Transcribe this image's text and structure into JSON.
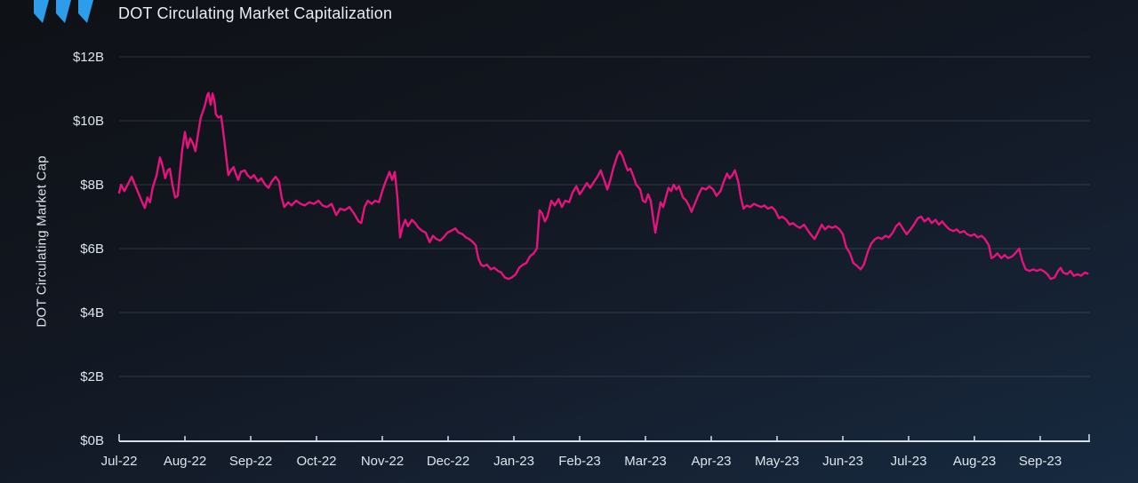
{
  "page": {
    "title": "DOT Circulating Market Capitalization"
  },
  "header": {
    "logo_color": "#2D9CEB"
  },
  "theme": {
    "background_top": "#0e1116",
    "background_bottom": "#172a40",
    "text_primary": "#E9EEF3",
    "text_secondary": "#DCE5EC",
    "gridline_color": "rgba(168,182,200,0.20)",
    "axis_color": "#D5E0EA",
    "line_color": "#E6137E"
  },
  "chart_data": {
    "type": "line",
    "title": "DOT Circulating Market Capitalization",
    "xlabel": "",
    "ylabel": "DOT Circulating Market Cap",
    "unit": "USD billions",
    "ylim": [
      0,
      12
    ],
    "ytick_values": [
      0,
      2,
      4,
      6,
      8,
      10,
      12
    ],
    "ytick_labels": [
      "$0B",
      "$2B",
      "$4B",
      "$6B",
      "$8B",
      "$10B",
      "$12B"
    ],
    "x_tick_labels": [
      "Jul-22",
      "Aug-22",
      "Sep-22",
      "Oct-22",
      "Nov-22",
      "Dec-22",
      "Jan-23",
      "Feb-23",
      "Mar-23",
      "Apr-23",
      "May-23",
      "Jun-23",
      "Jul-23",
      "Aug-23",
      "Sep-23"
    ],
    "x_unit": "months since Jul-2022",
    "x_range": [
      0,
      14.75
    ],
    "grid": "horizontal",
    "legend": "none",
    "series": [
      {
        "name": "DOT Circulating Market Cap",
        "color": "#E6137E",
        "points": [
          [
            0,
            7.75
          ],
          [
            0.03,
            8.0
          ],
          [
            0.08,
            7.8
          ],
          [
            0.19,
            8.25
          ],
          [
            0.24,
            8.0
          ],
          [
            0.3,
            7.7
          ],
          [
            0.35,
            7.45
          ],
          [
            0.39,
            7.27
          ],
          [
            0.43,
            7.6
          ],
          [
            0.47,
            7.45
          ],
          [
            0.51,
            7.9
          ],
          [
            0.57,
            8.3
          ],
          [
            0.62,
            8.85
          ],
          [
            0.66,
            8.6
          ],
          [
            0.7,
            8.2
          ],
          [
            0.74,
            8.45
          ],
          [
            0.77,
            8.5
          ],
          [
            0.81,
            8.0
          ],
          [
            0.85,
            7.6
          ],
          [
            0.89,
            7.65
          ],
          [
            0.92,
            8.3
          ],
          [
            0.96,
            9.1
          ],
          [
            1.0,
            9.65
          ],
          [
            1.04,
            9.15
          ],
          [
            1.08,
            9.45
          ],
          [
            1.12,
            9.3
          ],
          [
            1.16,
            9.05
          ],
          [
            1.2,
            9.6
          ],
          [
            1.24,
            10.1
          ],
          [
            1.3,
            10.45
          ],
          [
            1.34,
            10.8
          ],
          [
            1.36,
            10.87
          ],
          [
            1.39,
            10.5
          ],
          [
            1.42,
            10.85
          ],
          [
            1.45,
            10.6
          ],
          [
            1.47,
            10.2
          ],
          [
            1.51,
            10.1
          ],
          [
            1.55,
            10.15
          ],
          [
            1.58,
            9.7
          ],
          [
            1.62,
            9.0
          ],
          [
            1.66,
            8.3
          ],
          [
            1.7,
            8.45
          ],
          [
            1.74,
            8.55
          ],
          [
            1.78,
            8.3
          ],
          [
            1.81,
            8.15
          ],
          [
            1.85,
            8.4
          ],
          [
            1.91,
            8.45
          ],
          [
            1.95,
            8.3
          ],
          [
            2.0,
            8.2
          ],
          [
            2.05,
            8.3
          ],
          [
            2.11,
            8.1
          ],
          [
            2.16,
            8.2
          ],
          [
            2.22,
            8.0
          ],
          [
            2.27,
            7.9
          ],
          [
            2.32,
            8.1
          ],
          [
            2.38,
            8.25
          ],
          [
            2.43,
            8.1
          ],
          [
            2.47,
            7.6
          ],
          [
            2.51,
            7.3
          ],
          [
            2.57,
            7.45
          ],
          [
            2.62,
            7.35
          ],
          [
            2.69,
            7.5
          ],
          [
            2.76,
            7.4
          ],
          [
            2.82,
            7.35
          ],
          [
            2.89,
            7.45
          ],
          [
            2.96,
            7.4
          ],
          [
            3.03,
            7.5
          ],
          [
            3.09,
            7.35
          ],
          [
            3.16,
            7.3
          ],
          [
            3.23,
            7.4
          ],
          [
            3.3,
            7.05
          ],
          [
            3.36,
            7.25
          ],
          [
            3.43,
            7.2
          ],
          [
            3.5,
            7.3
          ],
          [
            3.57,
            7.1
          ],
          [
            3.64,
            6.85
          ],
          [
            3.68,
            6.8
          ],
          [
            3.73,
            7.3
          ],
          [
            3.78,
            7.5
          ],
          [
            3.84,
            7.4
          ],
          [
            3.89,
            7.5
          ],
          [
            3.95,
            7.45
          ],
          [
            4.0,
            7.8
          ],
          [
            4.05,
            8.1
          ],
          [
            4.11,
            8.4
          ],
          [
            4.15,
            8.15
          ],
          [
            4.19,
            8.4
          ],
          [
            4.23,
            7.6
          ],
          [
            4.27,
            6.35
          ],
          [
            4.31,
            6.7
          ],
          [
            4.35,
            6.9
          ],
          [
            4.39,
            6.7
          ],
          [
            4.45,
            6.9
          ],
          [
            4.5,
            6.8
          ],
          [
            4.55,
            6.65
          ],
          [
            4.61,
            6.55
          ],
          [
            4.66,
            6.5
          ],
          [
            4.72,
            6.2
          ],
          [
            4.77,
            6.4
          ],
          [
            4.82,
            6.3
          ],
          [
            4.88,
            6.25
          ],
          [
            4.93,
            6.35
          ],
          [
            4.99,
            6.5
          ],
          [
            5.04,
            6.55
          ],
          [
            5.11,
            6.63
          ],
          [
            5.16,
            6.5
          ],
          [
            5.22,
            6.45
          ],
          [
            5.27,
            6.35
          ],
          [
            5.32,
            6.3
          ],
          [
            5.38,
            6.2
          ],
          [
            5.42,
            6.1
          ],
          [
            5.46,
            5.7
          ],
          [
            5.5,
            5.5
          ],
          [
            5.54,
            5.45
          ],
          [
            5.59,
            5.5
          ],
          [
            5.65,
            5.35
          ],
          [
            5.7,
            5.4
          ],
          [
            5.76,
            5.3
          ],
          [
            5.81,
            5.25
          ],
          [
            5.86,
            5.1
          ],
          [
            5.92,
            5.05
          ],
          [
            5.97,
            5.1
          ],
          [
            6.03,
            5.2
          ],
          [
            6.08,
            5.4
          ],
          [
            6.14,
            5.5
          ],
          [
            6.19,
            5.55
          ],
          [
            6.24,
            5.75
          ],
          [
            6.3,
            5.85
          ],
          [
            6.35,
            6.0
          ],
          [
            6.39,
            7.2
          ],
          [
            6.43,
            7.1
          ],
          [
            6.47,
            6.85
          ],
          [
            6.51,
            7.0
          ],
          [
            6.57,
            7.5
          ],
          [
            6.62,
            7.35
          ],
          [
            6.68,
            7.55
          ],
          [
            6.73,
            7.3
          ],
          [
            6.78,
            7.5
          ],
          [
            6.84,
            7.45
          ],
          [
            6.89,
            7.75
          ],
          [
            6.95,
            7.95
          ],
          [
            7.0,
            7.7
          ],
          [
            7.05,
            7.85
          ],
          [
            7.11,
            8.05
          ],
          [
            7.16,
            7.9
          ],
          [
            7.22,
            8.1
          ],
          [
            7.27,
            8.25
          ],
          [
            7.32,
            8.45
          ],
          [
            7.38,
            8.1
          ],
          [
            7.42,
            7.85
          ],
          [
            7.46,
            8.1
          ],
          [
            7.51,
            8.5
          ],
          [
            7.57,
            8.9
          ],
          [
            7.61,
            9.05
          ],
          [
            7.65,
            8.9
          ],
          [
            7.69,
            8.65
          ],
          [
            7.73,
            8.45
          ],
          [
            7.77,
            8.5
          ],
          [
            7.81,
            8.3
          ],
          [
            7.86,
            8.0
          ],
          [
            7.92,
            7.85
          ],
          [
            7.96,
            7.5
          ],
          [
            8.0,
            7.45
          ],
          [
            8.04,
            7.7
          ],
          [
            8.08,
            7.5
          ],
          [
            8.12,
            6.9
          ],
          [
            8.15,
            6.5
          ],
          [
            8.19,
            7.0
          ],
          [
            8.23,
            7.45
          ],
          [
            8.27,
            7.3
          ],
          [
            8.31,
            7.6
          ],
          [
            8.35,
            7.9
          ],
          [
            8.39,
            7.8
          ],
          [
            8.43,
            8.0
          ],
          [
            8.47,
            7.85
          ],
          [
            8.51,
            7.95
          ],
          [
            8.57,
            7.6
          ],
          [
            8.62,
            7.5
          ],
          [
            8.66,
            7.35
          ],
          [
            8.7,
            7.15
          ],
          [
            8.76,
            7.45
          ],
          [
            8.81,
            7.7
          ],
          [
            8.86,
            7.9
          ],
          [
            8.92,
            7.85
          ],
          [
            8.97,
            7.95
          ],
          [
            9.03,
            7.85
          ],
          [
            9.08,
            7.65
          ],
          [
            9.14,
            7.8
          ],
          [
            9.19,
            8.1
          ],
          [
            9.24,
            8.35
          ],
          [
            9.28,
            8.2
          ],
          [
            9.32,
            8.3
          ],
          [
            9.36,
            8.45
          ],
          [
            9.41,
            8.1
          ],
          [
            9.45,
            7.6
          ],
          [
            9.49,
            7.25
          ],
          [
            9.54,
            7.35
          ],
          [
            9.59,
            7.3
          ],
          [
            9.65,
            7.4
          ],
          [
            9.7,
            7.35
          ],
          [
            9.76,
            7.3
          ],
          [
            9.81,
            7.35
          ],
          [
            9.86,
            7.25
          ],
          [
            9.92,
            7.3
          ],
          [
            9.97,
            7.2
          ],
          [
            10.03,
            6.95
          ],
          [
            10.08,
            7.0
          ],
          [
            10.14,
            6.9
          ],
          [
            10.19,
            6.75
          ],
          [
            10.24,
            6.8
          ],
          [
            10.3,
            6.7
          ],
          [
            10.35,
            6.65
          ],
          [
            10.41,
            6.75
          ],
          [
            10.46,
            6.6
          ],
          [
            10.51,
            6.45
          ],
          [
            10.57,
            6.3
          ],
          [
            10.62,
            6.5
          ],
          [
            10.68,
            6.75
          ],
          [
            10.73,
            6.6
          ],
          [
            10.78,
            6.7
          ],
          [
            10.84,
            6.65
          ],
          [
            10.89,
            6.7
          ],
          [
            10.95,
            6.6
          ],
          [
            11.0,
            6.45
          ],
          [
            11.05,
            6.05
          ],
          [
            11.11,
            5.85
          ],
          [
            11.16,
            5.55
          ],
          [
            11.22,
            5.45
          ],
          [
            11.27,
            5.35
          ],
          [
            11.32,
            5.5
          ],
          [
            11.38,
            5.9
          ],
          [
            11.43,
            6.15
          ],
          [
            11.49,
            6.3
          ],
          [
            11.54,
            6.35
          ],
          [
            11.59,
            6.3
          ],
          [
            11.65,
            6.4
          ],
          [
            11.7,
            6.35
          ],
          [
            11.76,
            6.5
          ],
          [
            11.81,
            6.7
          ],
          [
            11.86,
            6.8
          ],
          [
            11.92,
            6.6
          ],
          [
            11.97,
            6.45
          ],
          [
            12.03,
            6.6
          ],
          [
            12.08,
            6.75
          ],
          [
            12.14,
            6.95
          ],
          [
            12.19,
            7.0
          ],
          [
            12.24,
            6.85
          ],
          [
            12.3,
            6.95
          ],
          [
            12.35,
            6.8
          ],
          [
            12.41,
            6.9
          ],
          [
            12.46,
            6.75
          ],
          [
            12.51,
            6.85
          ],
          [
            12.57,
            6.7
          ],
          [
            12.62,
            6.6
          ],
          [
            12.68,
            6.55
          ],
          [
            12.73,
            6.6
          ],
          [
            12.78,
            6.5
          ],
          [
            12.84,
            6.55
          ],
          [
            12.89,
            6.45
          ],
          [
            12.95,
            6.4
          ],
          [
            13.0,
            6.45
          ],
          [
            13.05,
            6.35
          ],
          [
            13.11,
            6.4
          ],
          [
            13.16,
            6.3
          ],
          [
            13.22,
            6.1
          ],
          [
            13.26,
            5.7
          ],
          [
            13.3,
            5.75
          ],
          [
            13.35,
            5.85
          ],
          [
            13.41,
            5.7
          ],
          [
            13.46,
            5.8
          ],
          [
            13.51,
            5.7
          ],
          [
            13.57,
            5.75
          ],
          [
            13.62,
            5.85
          ],
          [
            13.68,
            6.0
          ],
          [
            13.73,
            5.6
          ],
          [
            13.78,
            5.35
          ],
          [
            13.84,
            5.3
          ],
          [
            13.89,
            5.35
          ],
          [
            13.95,
            5.3
          ],
          [
            14.0,
            5.35
          ],
          [
            14.05,
            5.3
          ],
          [
            14.11,
            5.2
          ],
          [
            14.16,
            5.05
          ],
          [
            14.22,
            5.1
          ],
          [
            14.27,
            5.3
          ],
          [
            14.31,
            5.4
          ],
          [
            14.35,
            5.25
          ],
          [
            14.41,
            5.2
          ],
          [
            14.46,
            5.3
          ],
          [
            14.51,
            5.15
          ],
          [
            14.57,
            5.2
          ],
          [
            14.62,
            5.15
          ],
          [
            14.68,
            5.25
          ],
          [
            14.72,
            5.22
          ]
        ]
      }
    ]
  }
}
